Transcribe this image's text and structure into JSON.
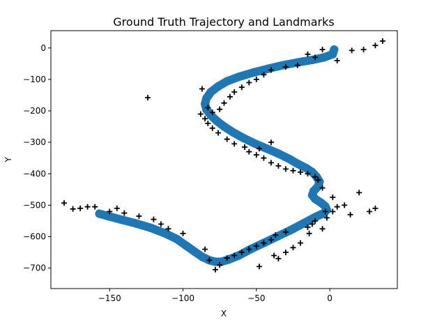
{
  "chart_data": {
    "type": "scatter",
    "title": "Ground Truth Trajectory and Landmarks",
    "xlabel": "X",
    "ylabel": "Y",
    "xlim": [
      -190,
      46
    ],
    "ylim": [
      -765,
      55
    ],
    "xticks": [
      -150,
      -100,
      -50,
      0
    ],
    "yticks": [
      0,
      -100,
      -200,
      -300,
      -400,
      -500,
      -600,
      -700
    ],
    "grid": false,
    "legend": "none",
    "colors": {
      "trajectory": "#1f77b4",
      "landmarks": "#000000"
    },
    "series": [
      {
        "marker": "circle",
        "role": "trajectory",
        "x": [
          3,
          2,
          -4,
          -12,
          -22,
          -32,
          -42,
          -52,
          -62,
          -70,
          -76,
          -81,
          -84,
          -85,
          -84,
          -81,
          -77,
          -72,
          -66,
          -59,
          -51,
          -43,
          -35,
          -28,
          -22,
          -16,
          -12,
          -9,
          -7,
          -8,
          -11,
          -12,
          -10,
          -6,
          -3,
          -2,
          -4,
          -10,
          -18,
          -27,
          -36,
          -45,
          -54,
          -62,
          -69,
          -74,
          -78,
          -82,
          -87,
          -92,
          -98,
          -104,
          -112,
          -122,
          -132,
          -142,
          -150,
          -157
        ],
        "y": [
          -5,
          -20,
          -30,
          -38,
          -46,
          -55,
          -66,
          -78,
          -92,
          -106,
          -122,
          -140,
          -160,
          -178,
          -196,
          -214,
          -232,
          -250,
          -268,
          -286,
          -304,
          -320,
          -336,
          -352,
          -368,
          -382,
          -395,
          -410,
          -425,
          -440,
          -455,
          -468,
          -480,
          -492,
          -504,
          -515,
          -525,
          -538,
          -558,
          -580,
          -600,
          -620,
          -640,
          -660,
          -673,
          -680,
          -680,
          -675,
          -664,
          -648,
          -628,
          -608,
          -590,
          -572,
          -558,
          -546,
          -536,
          -527
        ]
      },
      {
        "marker": "plus",
        "role": "landmarks",
        "x": [
          36,
          31,
          23,
          15,
          5,
          -5,
          -15,
          -10,
          -22,
          -30,
          -40,
          -45,
          -50,
          -55,
          -60,
          -65,
          -68,
          -72,
          -75,
          -80,
          -88,
          -85,
          -83,
          -80,
          -76,
          -70,
          -65,
          -58,
          -55,
          -50,
          -45,
          -40,
          -35,
          -30,
          -25,
          -20,
          -15,
          -10,
          -8,
          -5,
          2,
          5,
          -3,
          -10,
          -12,
          -15,
          20,
          14,
          27,
          31,
          -30,
          -37,
          -40,
          -45,
          -50,
          -55,
          -60,
          -65,
          -70,
          -75,
          -78,
          -82,
          -85,
          -100,
          -110,
          -115,
          -120,
          -130,
          -140,
          -145,
          -150,
          -160,
          -165,
          -170,
          -175,
          -181,
          -124,
          -87,
          -83,
          -48,
          -38,
          -35,
          -30,
          -25,
          -20,
          -14,
          -5,
          -2,
          2,
          10,
          -40,
          -48
        ],
        "y": [
          22,
          8,
          -5,
          -8,
          -40,
          -5,
          -20,
          -30,
          -55,
          -60,
          -70,
          -85,
          -100,
          -110,
          -125,
          -140,
          -155,
          -175,
          -195,
          -205,
          -210,
          -225,
          -240,
          -255,
          -270,
          -290,
          -305,
          -315,
          -330,
          -340,
          -350,
          -365,
          -375,
          -385,
          -390,
          -395,
          -400,
          -410,
          -420,
          -445,
          -475,
          -505,
          -520,
          -550,
          -560,
          -570,
          -460,
          -530,
          -520,
          -510,
          -585,
          -595,
          -610,
          -620,
          -630,
          -640,
          -650,
          -660,
          -668,
          -690,
          -705,
          -675,
          -640,
          -590,
          -575,
          -560,
          -545,
          -535,
          -525,
          -510,
          -520,
          -505,
          -505,
          -510,
          -512,
          -493,
          -158,
          -130,
          -190,
          -695,
          -660,
          -670,
          -650,
          -635,
          -620,
          -590,
          -575,
          -540,
          -520,
          -500,
          -300,
          -320
        ]
      }
    ]
  }
}
